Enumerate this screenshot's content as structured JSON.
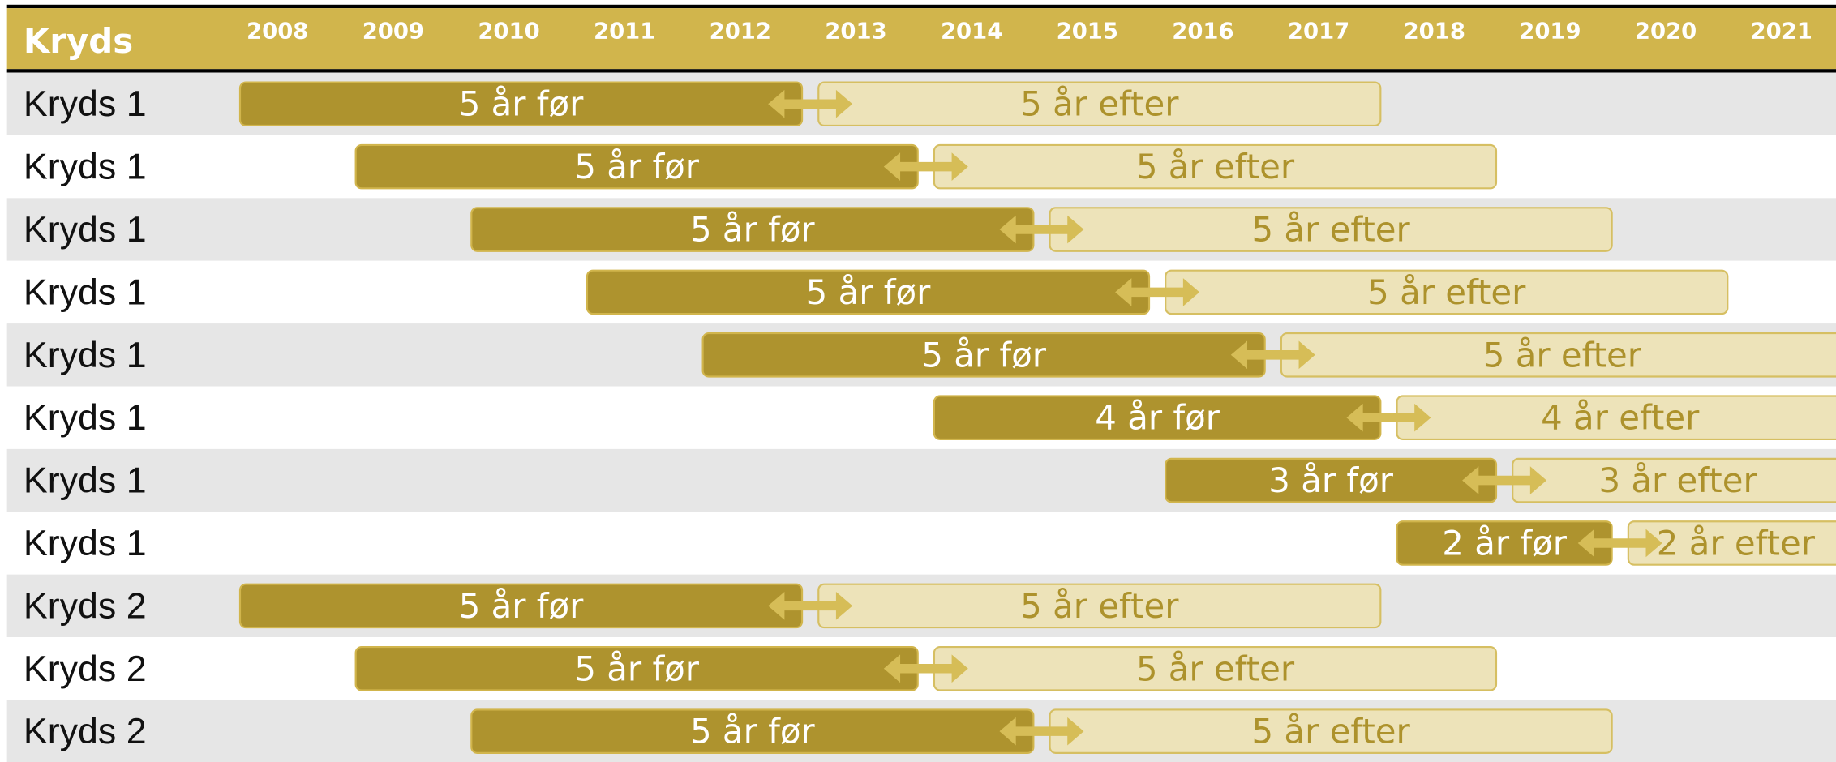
{
  "header": {
    "title": "Kryds",
    "years": [
      "2008",
      "2009",
      "2010",
      "2011",
      "2012",
      "2013",
      "2014",
      "2015",
      "2016",
      "2017",
      "2018",
      "2019",
      "2020",
      "2021"
    ]
  },
  "rows": [
    {
      "label": "Kryds 1",
      "before": "5 år før",
      "after": "5 år efter"
    },
    {
      "label": "Kryds 1",
      "before": "5 år før",
      "after": "5 år efter"
    },
    {
      "label": "Kryds 1",
      "before": "5 år før",
      "after": "5 år efter"
    },
    {
      "label": "Kryds 1",
      "before": "5 år før",
      "after": "5 år efter"
    },
    {
      "label": "Kryds 1",
      "before": "5 år før",
      "after": "5 år efter"
    },
    {
      "label": "Kryds 1",
      "before": "4 år før",
      "after": "4 år efter"
    },
    {
      "label": "Kryds 1",
      "before": "3 år før",
      "after": "3 år efter"
    },
    {
      "label": "Kryds 1",
      "before": "2 år før",
      "after": "2 år efter"
    },
    {
      "label": "Kryds 2",
      "before": "5 år før",
      "after": "5 år efter"
    },
    {
      "label": "Kryds 2",
      "before": "5 år før",
      "after": "5 år efter"
    },
    {
      "label": "Kryds 2",
      "before": "5 år før",
      "after": "5 år efter"
    }
  ]
}
